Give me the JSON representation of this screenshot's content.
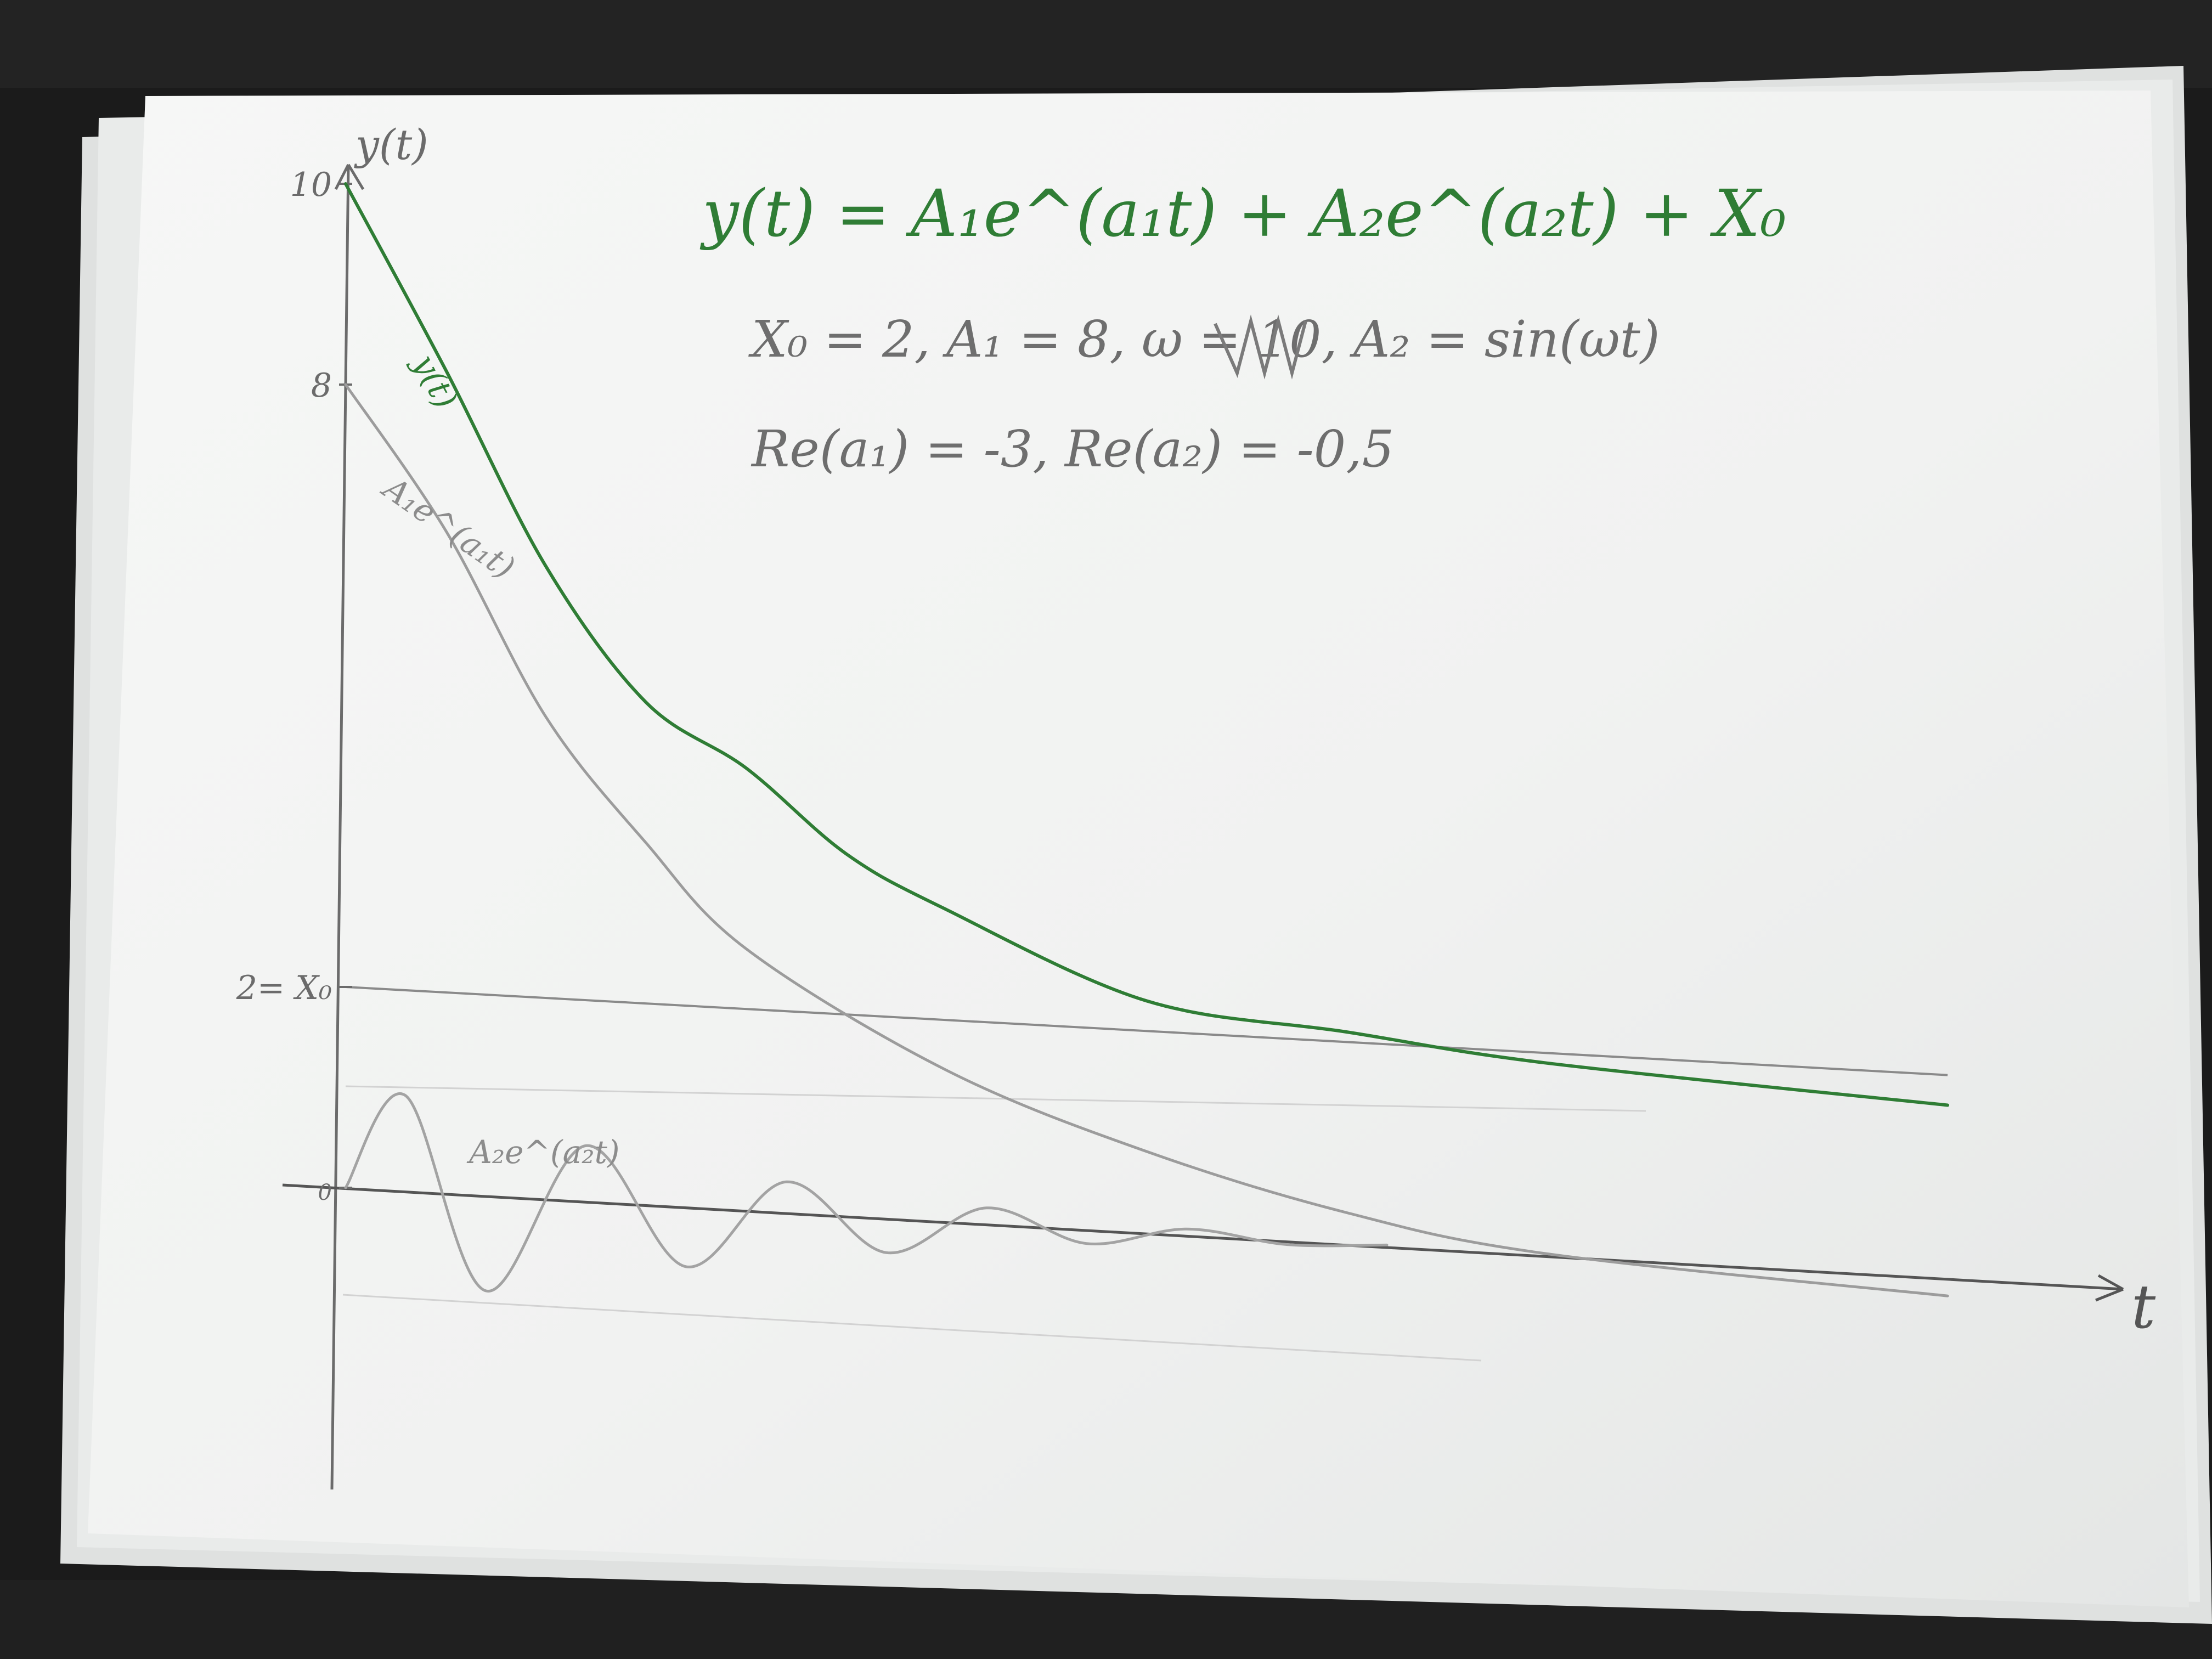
{
  "photo": {
    "desk_color": "#1b1b1b",
    "paper_color": "#f4f5f4"
  },
  "header": {
    "formula": "y(t) = A₁e^(a₁t) + A₂e^(a₂t) + X₀",
    "params_line1": "X₀ = 2,  A₁ = 8,  ω = 10,  A₂ = sin(ωt)",
    "params_line2": "Re(a₁) = -3,  Re(a₂) = -0,5",
    "scribble_note": "(crossed-out text)"
  },
  "chart_data": {
    "type": "line",
    "xlabel": "t",
    "ylabel": "y(t)",
    "y_ticks": [
      {
        "value": 10,
        "label": "10"
      },
      {
        "value": 8,
        "label": "8"
      },
      {
        "value": 2,
        "label": "2= X₀"
      },
      {
        "value": 0,
        "label": "0"
      }
    ],
    "reference_line": {
      "name": "X₀",
      "value": 2
    },
    "params": {
      "X0": 2,
      "A1": 8,
      "omega": 10,
      "a1": -3,
      "a2": -0.5
    },
    "series": [
      {
        "name": "y(t)",
        "label": "y(t)",
        "color": "#2f7d35",
        "x": [
          0,
          0.25,
          0.5,
          0.75,
          1.0,
          1.25,
          1.5,
          2.0,
          2.5,
          3.0,
          4.0
        ],
        "values": [
          10,
          8.2,
          6.3,
          5.0,
          4.4,
          3.6,
          3.1,
          2.3,
          2.1,
          1.9,
          1.7
        ]
      },
      {
        "name": "A₁e^(a₁t)",
        "label": "A₁e^(a₁t)",
        "color": "#9c9c9c",
        "x": [
          0,
          0.25,
          0.5,
          0.75,
          1.0,
          1.5,
          2.0,
          2.5,
          3.0,
          4.0
        ],
        "values": [
          8,
          6.6,
          4.8,
          3.6,
          2.6,
          1.5,
          0.8,
          0.3,
          0.0,
          -0.2
        ]
      },
      {
        "name": "A₂e^(a₂t)",
        "label": "A₂e^(a₂t)",
        "color": "#a3a3a3",
        "x": [
          0,
          0.15,
          0.35,
          0.6,
          0.85,
          1.1,
          1.35,
          1.6,
          1.85,
          2.1,
          2.35,
          2.6
        ],
        "values": [
          0,
          0.95,
          -0.95,
          0.55,
          -0.6,
          0.3,
          -0.35,
          0.15,
          -0.15,
          0.05,
          -0.05,
          0
        ]
      }
    ]
  }
}
